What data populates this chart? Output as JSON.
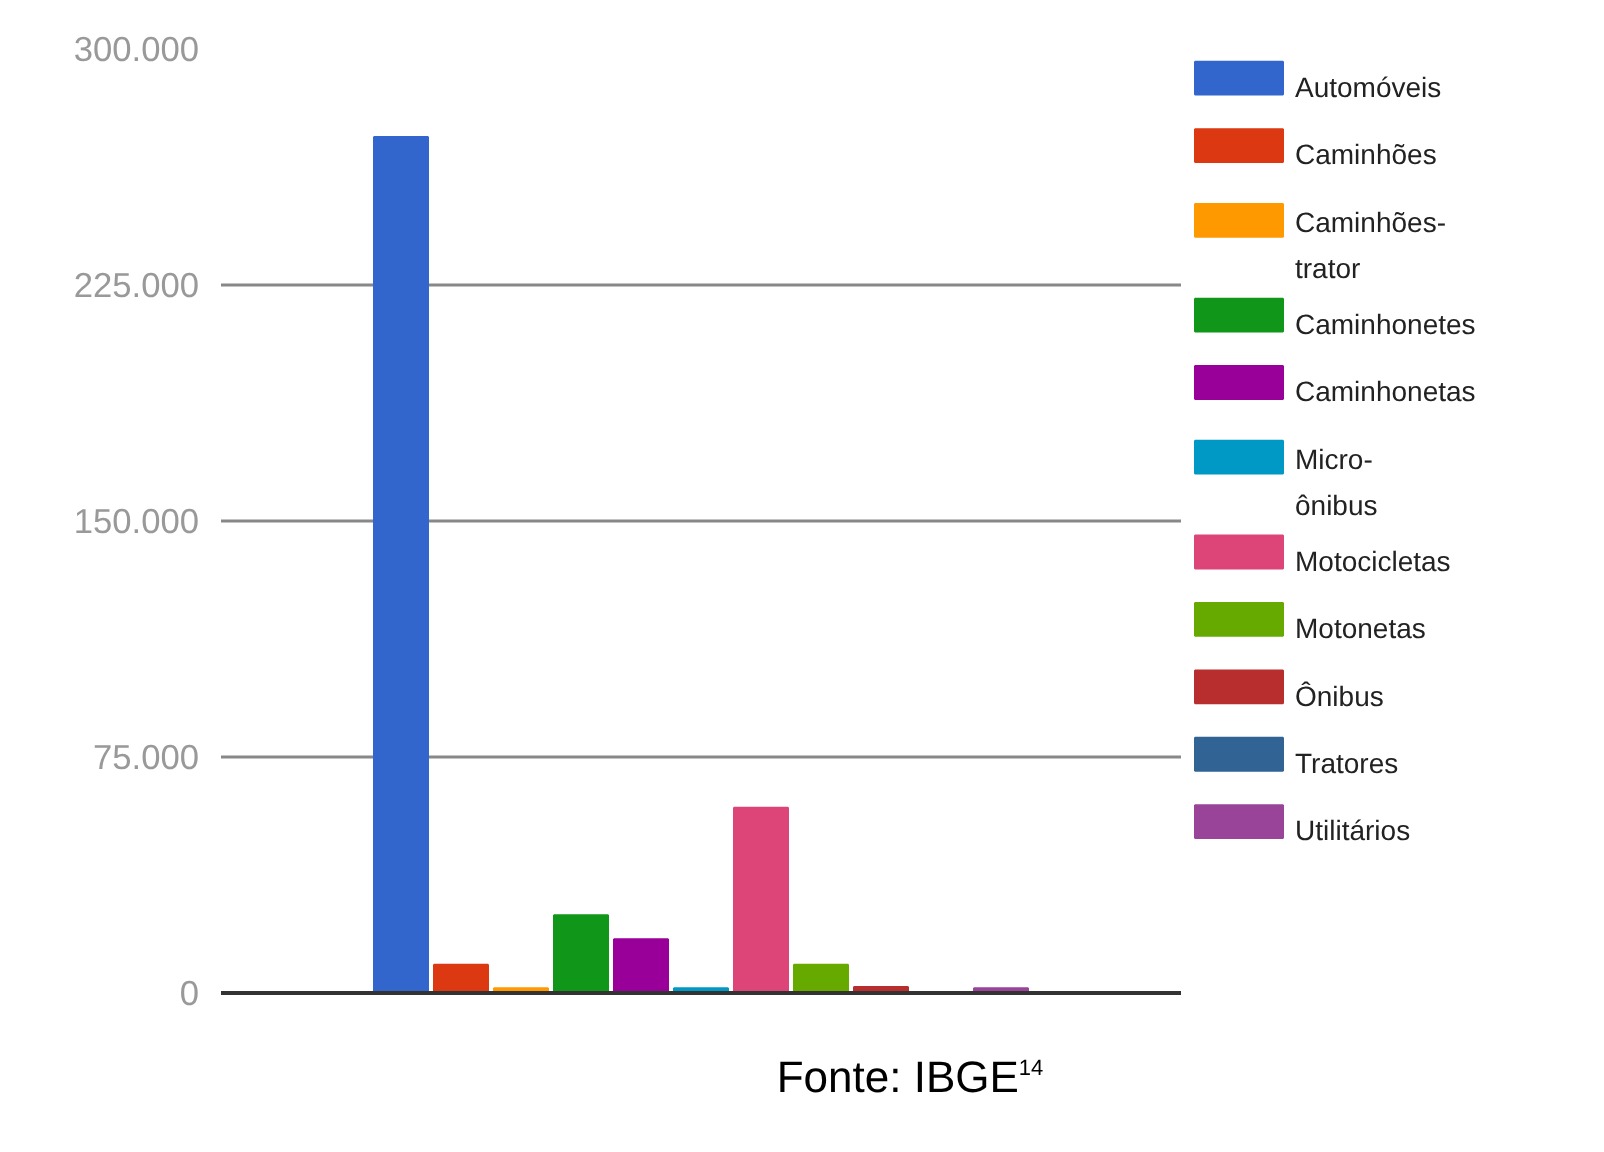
{
  "chart_data": {
    "type": "bar",
    "categories": [
      null
    ],
    "series": [
      {
        "name": "Automóveis",
        "color": "#3366cc",
        "values": [
          272000
        ]
      },
      {
        "name": "Caminhões",
        "color": "#dc3912",
        "values": [
          9000
        ]
      },
      {
        "name": "Caminhões-trator",
        "color": "#ff9900",
        "values": [
          1500
        ]
      },
      {
        "name": "Caminhonetes",
        "color": "#109618",
        "values": [
          24700
        ]
      },
      {
        "name": "Caminhonetas",
        "color": "#990099",
        "values": [
          17100
        ]
      },
      {
        "name": "Micro-ônibus",
        "color": "#0099c6",
        "values": [
          1500
        ]
      },
      {
        "name": "Motocicletas",
        "color": "#dd4477",
        "values": [
          58900
        ]
      },
      {
        "name": "Motonetas",
        "color": "#66aa00",
        "values": [
          9000
        ]
      },
      {
        "name": "Ônibus",
        "color": "#b82e2e",
        "values": [
          1900
        ]
      },
      {
        "name": "Tratores",
        "color": "#316395",
        "values": [
          0
        ]
      },
      {
        "name": "Utilitários",
        "color": "#994499",
        "values": [
          1500
        ]
      }
    ],
    "ylim": [
      0,
      300000
    ],
    "yticks": [
      {
        "value": 0,
        "label": "0"
      },
      {
        "value": 75000,
        "label": "75.000"
      },
      {
        "value": 150000,
        "label": "150.000"
      },
      {
        "value": 225000,
        "label": "225.000"
      },
      {
        "value": 300000,
        "label": "300.000"
      }
    ],
    "grid": "y",
    "legend": "right",
    "annotations": [
      "Fonte: IBGE$^{14}$"
    ]
  }
}
